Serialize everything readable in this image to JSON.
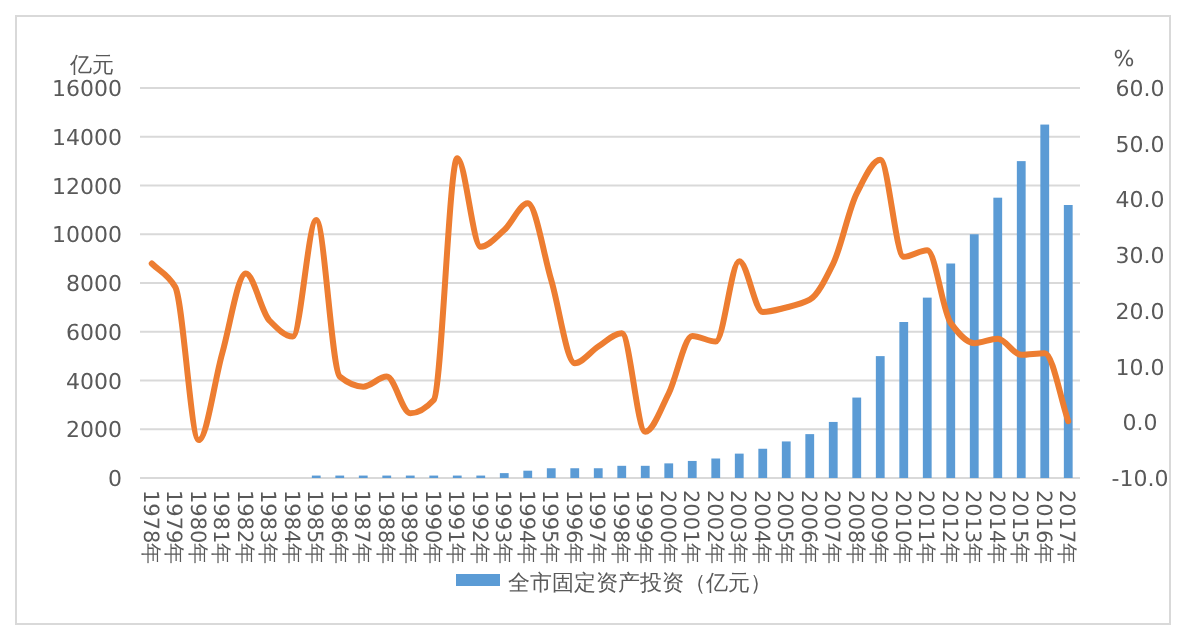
{
  "chart_data": {
    "type": "bar",
    "ylabel": "亿元",
    "y2label": "%",
    "categories": [
      "1978年",
      "1979年",
      "1980年",
      "1981年",
      "1982年",
      "1983年",
      "1984年",
      "1985年",
      "1986年",
      "1987年",
      "1988年",
      "1989年",
      "1990年",
      "1991年",
      "1992年",
      "1993年",
      "1994年",
      "1995年",
      "1996年",
      "1997年",
      "1998年",
      "1999年",
      "2000年",
      "2001年",
      "2002年",
      "2003年",
      "2004年",
      "2005年",
      "2006年",
      "2007年",
      "2008年",
      "2009年",
      "2010年",
      "2011年",
      "2012年",
      "2013年",
      "2014年",
      "2015年",
      "2016年",
      "2017年"
    ],
    "series": [
      {
        "name": "全市固定资产投资（亿元）",
        "color": "#5b9bd5",
        "values": [
          0,
          0,
          0,
          0,
          0,
          0,
          0,
          100,
          100,
          100,
          100,
          100,
          100,
          100,
          100,
          200,
          300,
          400,
          400,
          400,
          500,
          500,
          600,
          700,
          800,
          1000,
          1200,
          1500,
          1800,
          2300,
          3300,
          5000,
          6400,
          7400,
          8800,
          10000,
          11500,
          13000,
          14500,
          11200
        ]
      },
      {
        "type": "line",
        "axis": "y2",
        "color": "#ed7d31",
        "values": [
          28.5,
          24.3,
          -3.2,
          12.4,
          26.7,
          18.3,
          15.4,
          36.3,
          8.2,
          6.4,
          8.2,
          1.6,
          4.0,
          47.4,
          31.5,
          34.5,
          39.3,
          25.5,
          10.6,
          13.6,
          16.0,
          -1.7,
          5.2,
          15.5,
          14.5,
          28.9,
          19.8,
          20.6,
          22.0,
          28.5,
          41.1,
          47.1,
          29.7,
          30.9,
          17.8,
          14.2,
          15.0,
          12.1,
          12.4,
          0.2
        ]
      }
    ],
    "ylim": [
      0,
      16000
    ],
    "yticks": [
      0,
      2000,
      4000,
      6000,
      8000,
      10000,
      12000,
      14000,
      16000
    ],
    "y2lim": [
      -10,
      60
    ],
    "y2ticks": [
      {
        "value": -10,
        "label": "-10.0"
      },
      {
        "value": 0,
        "label": "0.0"
      },
      {
        "value": 10,
        "label": "10.0"
      },
      {
        "value": 20,
        "label": "20.0"
      },
      {
        "value": 30,
        "label": "30.0"
      },
      {
        "value": 40,
        "label": "40.0"
      },
      {
        "value": 50,
        "label": "50.0"
      },
      {
        "value": 60,
        "label": "60.0"
      }
    ],
    "grid": "y",
    "legend": "bottom"
  }
}
